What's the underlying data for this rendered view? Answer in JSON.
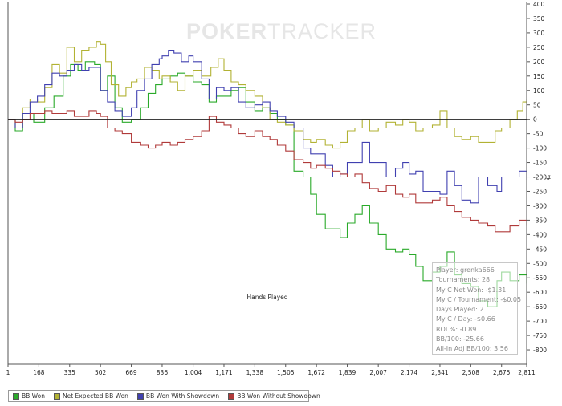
{
  "watermark": {
    "strong": "POKER",
    "thin": "TRACKER"
  },
  "stats": [
    "Player: grenka666",
    "Tournaments: 28",
    "My C Net Won: -$1.31",
    "My C / Tournament: -$0.05",
    "Days Played: 2",
    "My C / Day: -$0.66",
    "ROI %: -0.89",
    "BB/100: -25.66",
    "All-In Adj BB/100: 3.56"
  ],
  "chart_data": {
    "type": "line",
    "title": "",
    "xlabel": "Hands Played",
    "ylabel": "",
    "right_axis_marker": "#",
    "xlim": [
      1,
      2811
    ],
    "ylim": [
      -850,
      400
    ],
    "x_ticks": [
      "1",
      "168",
      "335",
      "502",
      "669",
      "836",
      "1,004",
      "1,171",
      "1,338",
      "1,505",
      "1,672",
      "1,839",
      "2,007",
      "2,174",
      "2,341",
      "2,508",
      "2,675",
      "2,811"
    ],
    "y_ticks": [
      "400",
      "350",
      "300",
      "250",
      "200",
      "150",
      "100",
      "50",
      "0",
      "-50",
      "-100",
      "-150",
      "-200",
      "-250",
      "-300",
      "-350",
      "-400",
      "-450",
      "-500",
      "-550",
      "-600",
      "-650",
      "-700",
      "-750",
      "-800"
    ],
    "y_axis_position": "right",
    "grid": false,
    "legend_position": "bottom-left",
    "series": [
      {
        "name": "BB Won",
        "color": "#2aaa2a",
        "points": [
          [
            1,
            0
          ],
          [
            40,
            -40
          ],
          [
            80,
            20
          ],
          [
            140,
            -10
          ],
          [
            200,
            40
          ],
          [
            250,
            80
          ],
          [
            300,
            150
          ],
          [
            340,
            190
          ],
          [
            380,
            170
          ],
          [
            420,
            200
          ],
          [
            470,
            190
          ],
          [
            502,
            100
          ],
          [
            540,
            150
          ],
          [
            580,
            40
          ],
          [
            620,
            -10
          ],
          [
            669,
            0
          ],
          [
            720,
            40
          ],
          [
            760,
            90
          ],
          [
            800,
            120
          ],
          [
            836,
            140
          ],
          [
            880,
            150
          ],
          [
            920,
            160
          ],
          [
            960,
            150
          ],
          [
            1004,
            130
          ],
          [
            1050,
            120
          ],
          [
            1090,
            60
          ],
          [
            1130,
            80
          ],
          [
            1171,
            80
          ],
          [
            1210,
            100
          ],
          [
            1250,
            110
          ],
          [
            1290,
            60
          ],
          [
            1338,
            30
          ],
          [
            1380,
            40
          ],
          [
            1420,
            20
          ],
          [
            1460,
            0
          ],
          [
            1505,
            -20
          ],
          [
            1550,
            -180
          ],
          [
            1600,
            -200
          ],
          [
            1640,
            -260
          ],
          [
            1672,
            -330
          ],
          [
            1720,
            -380
          ],
          [
            1760,
            -380
          ],
          [
            1800,
            -410
          ],
          [
            1839,
            -360
          ],
          [
            1880,
            -330
          ],
          [
            1920,
            -300
          ],
          [
            1960,
            -360
          ],
          [
            2007,
            -400
          ],
          [
            2050,
            -450
          ],
          [
            2100,
            -460
          ],
          [
            2140,
            -450
          ],
          [
            2174,
            -470
          ],
          [
            2210,
            -510
          ],
          [
            2250,
            -560
          ],
          [
            2300,
            -530
          ],
          [
            2341,
            -510
          ],
          [
            2380,
            -460
          ],
          [
            2420,
            -540
          ],
          [
            2460,
            -570
          ],
          [
            2508,
            -580
          ],
          [
            2550,
            -630
          ],
          [
            2600,
            -650
          ],
          [
            2650,
            -560
          ],
          [
            2675,
            -530
          ],
          [
            2720,
            -560
          ],
          [
            2770,
            -540
          ],
          [
            2811,
            -570
          ]
        ]
      },
      {
        "name": "Net Expected BB Won",
        "color": "#b2b233",
        "points": [
          [
            1,
            0
          ],
          [
            40,
            -30
          ],
          [
            80,
            40
          ],
          [
            120,
            70
          ],
          [
            160,
            60
          ],
          [
            200,
            110
          ],
          [
            240,
            190
          ],
          [
            280,
            160
          ],
          [
            320,
            250
          ],
          [
            360,
            200
          ],
          [
            400,
            240
          ],
          [
            440,
            250
          ],
          [
            480,
            270
          ],
          [
            502,
            260
          ],
          [
            530,
            200
          ],
          [
            560,
            120
          ],
          [
            600,
            80
          ],
          [
            640,
            110
          ],
          [
            669,
            130
          ],
          [
            700,
            140
          ],
          [
            740,
            180
          ],
          [
            780,
            170
          ],
          [
            820,
            140
          ],
          [
            836,
            150
          ],
          [
            880,
            130
          ],
          [
            920,
            100
          ],
          [
            960,
            150
          ],
          [
            1004,
            170
          ],
          [
            1050,
            150
          ],
          [
            1100,
            180
          ],
          [
            1140,
            210
          ],
          [
            1171,
            170
          ],
          [
            1210,
            130
          ],
          [
            1250,
            120
          ],
          [
            1290,
            100
          ],
          [
            1338,
            80
          ],
          [
            1380,
            40
          ],
          [
            1420,
            0
          ],
          [
            1460,
            -10
          ],
          [
            1505,
            -20
          ],
          [
            1550,
            -40
          ],
          [
            1600,
            -70
          ],
          [
            1640,
            -80
          ],
          [
            1672,
            -70
          ],
          [
            1720,
            -90
          ],
          [
            1760,
            -100
          ],
          [
            1800,
            -80
          ],
          [
            1839,
            -40
          ],
          [
            1880,
            -30
          ],
          [
            1920,
            0
          ],
          [
            1960,
            -40
          ],
          [
            2007,
            -30
          ],
          [
            2050,
            -10
          ],
          [
            2100,
            -20
          ],
          [
            2140,
            0
          ],
          [
            2174,
            -10
          ],
          [
            2210,
            -40
          ],
          [
            2250,
            -30
          ],
          [
            2300,
            -20
          ],
          [
            2341,
            30
          ],
          [
            2380,
            -30
          ],
          [
            2420,
            -60
          ],
          [
            2460,
            -70
          ],
          [
            2508,
            -60
          ],
          [
            2550,
            -80
          ],
          [
            2600,
            -80
          ],
          [
            2640,
            -40
          ],
          [
            2675,
            -30
          ],
          [
            2720,
            0
          ],
          [
            2760,
            30
          ],
          [
            2790,
            60
          ],
          [
            2811,
            70
          ]
        ]
      },
      {
        "name": "BB Won With Showdown",
        "color": "#4040b0",
        "points": [
          [
            1,
            0
          ],
          [
            40,
            -30
          ],
          [
            80,
            20
          ],
          [
            120,
            60
          ],
          [
            160,
            80
          ],
          [
            200,
            120
          ],
          [
            240,
            160
          ],
          [
            280,
            150
          ],
          [
            320,
            170
          ],
          [
            360,
            190
          ],
          [
            400,
            170
          ],
          [
            440,
            180
          ],
          [
            470,
            180
          ],
          [
            502,
            100
          ],
          [
            540,
            60
          ],
          [
            580,
            30
          ],
          [
            620,
            10
          ],
          [
            669,
            40
          ],
          [
            700,
            100
          ],
          [
            740,
            140
          ],
          [
            780,
            190
          ],
          [
            820,
            210
          ],
          [
            836,
            220
          ],
          [
            870,
            240
          ],
          [
            900,
            230
          ],
          [
            940,
            200
          ],
          [
            980,
            220
          ],
          [
            1004,
            200
          ],
          [
            1050,
            140
          ],
          [
            1090,
            70
          ],
          [
            1130,
            110
          ],
          [
            1171,
            100
          ],
          [
            1210,
            110
          ],
          [
            1250,
            60
          ],
          [
            1290,
            40
          ],
          [
            1338,
            50
          ],
          [
            1380,
            60
          ],
          [
            1420,
            30
          ],
          [
            1460,
            10
          ],
          [
            1505,
            -10
          ],
          [
            1550,
            -30
          ],
          [
            1600,
            -100
          ],
          [
            1640,
            -120
          ],
          [
            1672,
            -120
          ],
          [
            1720,
            -160
          ],
          [
            1760,
            -200
          ],
          [
            1800,
            -190
          ],
          [
            1839,
            -150
          ],
          [
            1880,
            -150
          ],
          [
            1920,
            -80
          ],
          [
            1960,
            -150
          ],
          [
            2007,
            -150
          ],
          [
            2050,
            -200
          ],
          [
            2100,
            -170
          ],
          [
            2140,
            -150
          ],
          [
            2174,
            -190
          ],
          [
            2210,
            -180
          ],
          [
            2250,
            -250
          ],
          [
            2300,
            -250
          ],
          [
            2341,
            -260
          ],
          [
            2380,
            -180
          ],
          [
            2420,
            -230
          ],
          [
            2460,
            -280
          ],
          [
            2508,
            -290
          ],
          [
            2550,
            -200
          ],
          [
            2600,
            -230
          ],
          [
            2650,
            -250
          ],
          [
            2675,
            -200
          ],
          [
            2720,
            -200
          ],
          [
            2770,
            -180
          ],
          [
            2811,
            -210
          ]
        ]
      },
      {
        "name": "BB Won Without Showdown",
        "color": "#b03a3a",
        "points": [
          [
            1,
            0
          ],
          [
            40,
            -10
          ],
          [
            80,
            0
          ],
          [
            120,
            20
          ],
          [
            160,
            20
          ],
          [
            200,
            30
          ],
          [
            240,
            20
          ],
          [
            280,
            20
          ],
          [
            320,
            30
          ],
          [
            360,
            10
          ],
          [
            400,
            10
          ],
          [
            440,
            30
          ],
          [
            480,
            20
          ],
          [
            502,
            10
          ],
          [
            540,
            -30
          ],
          [
            580,
            -40
          ],
          [
            620,
            -50
          ],
          [
            669,
            -80
          ],
          [
            720,
            -90
          ],
          [
            760,
            -100
          ],
          [
            800,
            -90
          ],
          [
            836,
            -80
          ],
          [
            880,
            -90
          ],
          [
            920,
            -80
          ],
          [
            960,
            -70
          ],
          [
            1004,
            -60
          ],
          [
            1050,
            -40
          ],
          [
            1090,
            10
          ],
          [
            1130,
            -10
          ],
          [
            1171,
            -20
          ],
          [
            1210,
            -30
          ],
          [
            1250,
            -50
          ],
          [
            1290,
            -60
          ],
          [
            1338,
            -40
          ],
          [
            1380,
            -60
          ],
          [
            1420,
            -70
          ],
          [
            1460,
            -90
          ],
          [
            1505,
            -110
          ],
          [
            1550,
            -140
          ],
          [
            1600,
            -150
          ],
          [
            1640,
            -170
          ],
          [
            1672,
            -160
          ],
          [
            1720,
            -170
          ],
          [
            1760,
            -180
          ],
          [
            1800,
            -190
          ],
          [
            1839,
            -200
          ],
          [
            1880,
            -190
          ],
          [
            1920,
            -220
          ],
          [
            1960,
            -240
          ],
          [
            2007,
            -250
          ],
          [
            2050,
            -230
          ],
          [
            2100,
            -260
          ],
          [
            2140,
            -270
          ],
          [
            2174,
            -260
          ],
          [
            2210,
            -290
          ],
          [
            2250,
            -290
          ],
          [
            2300,
            -280
          ],
          [
            2341,
            -270
          ],
          [
            2380,
            -300
          ],
          [
            2420,
            -320
          ],
          [
            2460,
            -340
          ],
          [
            2508,
            -350
          ],
          [
            2550,
            -360
          ],
          [
            2600,
            -370
          ],
          [
            2640,
            -390
          ],
          [
            2675,
            -390
          ],
          [
            2720,
            -370
          ],
          [
            2770,
            -350
          ],
          [
            2811,
            -370
          ]
        ]
      }
    ]
  }
}
